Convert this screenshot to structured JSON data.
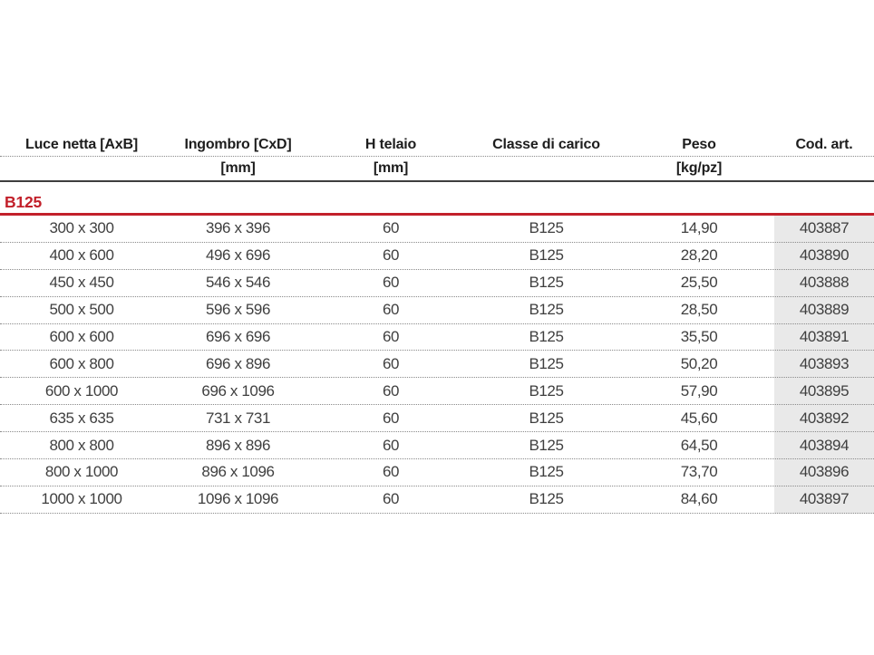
{
  "table": {
    "section": "B125",
    "columns": [
      {
        "label": "Luce netta [AxB]",
        "unit": ""
      },
      {
        "label": "Ingombro [CxD]",
        "unit": "[mm]"
      },
      {
        "label": "H telaio",
        "unit": "[mm]"
      },
      {
        "label": "Classe di carico",
        "unit": ""
      },
      {
        "label": "Peso",
        "unit": "[kg/pz]"
      },
      {
        "label": "Cod. art.",
        "unit": ""
      }
    ],
    "rows": [
      [
        "300 x 300",
        "396 x 396",
        "60",
        "B125",
        "14,90",
        "403887"
      ],
      [
        "400 x 600",
        "496 x 696",
        "60",
        "B125",
        "28,20",
        "403890"
      ],
      [
        "450 x 450",
        "546 x 546",
        "60",
        "B125",
        "25,50",
        "403888"
      ],
      [
        "500 x 500",
        "596 x 596",
        "60",
        "B125",
        "28,50",
        "403889"
      ],
      [
        "600 x 600",
        "696 x 696",
        "60",
        "B125",
        "35,50",
        "403891"
      ],
      [
        "600 x 800",
        "696 x 896",
        "60",
        "B125",
        "50,20",
        "403893"
      ],
      [
        "600 x 1000",
        "696 x 1096",
        "60",
        "B125",
        "57,90",
        "403895"
      ],
      [
        "635 x 635",
        "731 x 731",
        "60",
        "B125",
        "45,60",
        "403892"
      ],
      [
        "800 x 800",
        "896 x 896",
        "60",
        "B125",
        "64,50",
        "403894"
      ],
      [
        "800 x 1000",
        "896 x 1096",
        "60",
        "B125",
        "73,70",
        "403896"
      ],
      [
        "1000 x 1000",
        "1096 x 1096",
        "60",
        "B125",
        "84,60",
        "403897"
      ]
    ],
    "colors": {
      "accent_red": "#c2202a",
      "cod_art_column_bg": "#e9e9e9",
      "header_rule": "#3e3e3e"
    }
  }
}
